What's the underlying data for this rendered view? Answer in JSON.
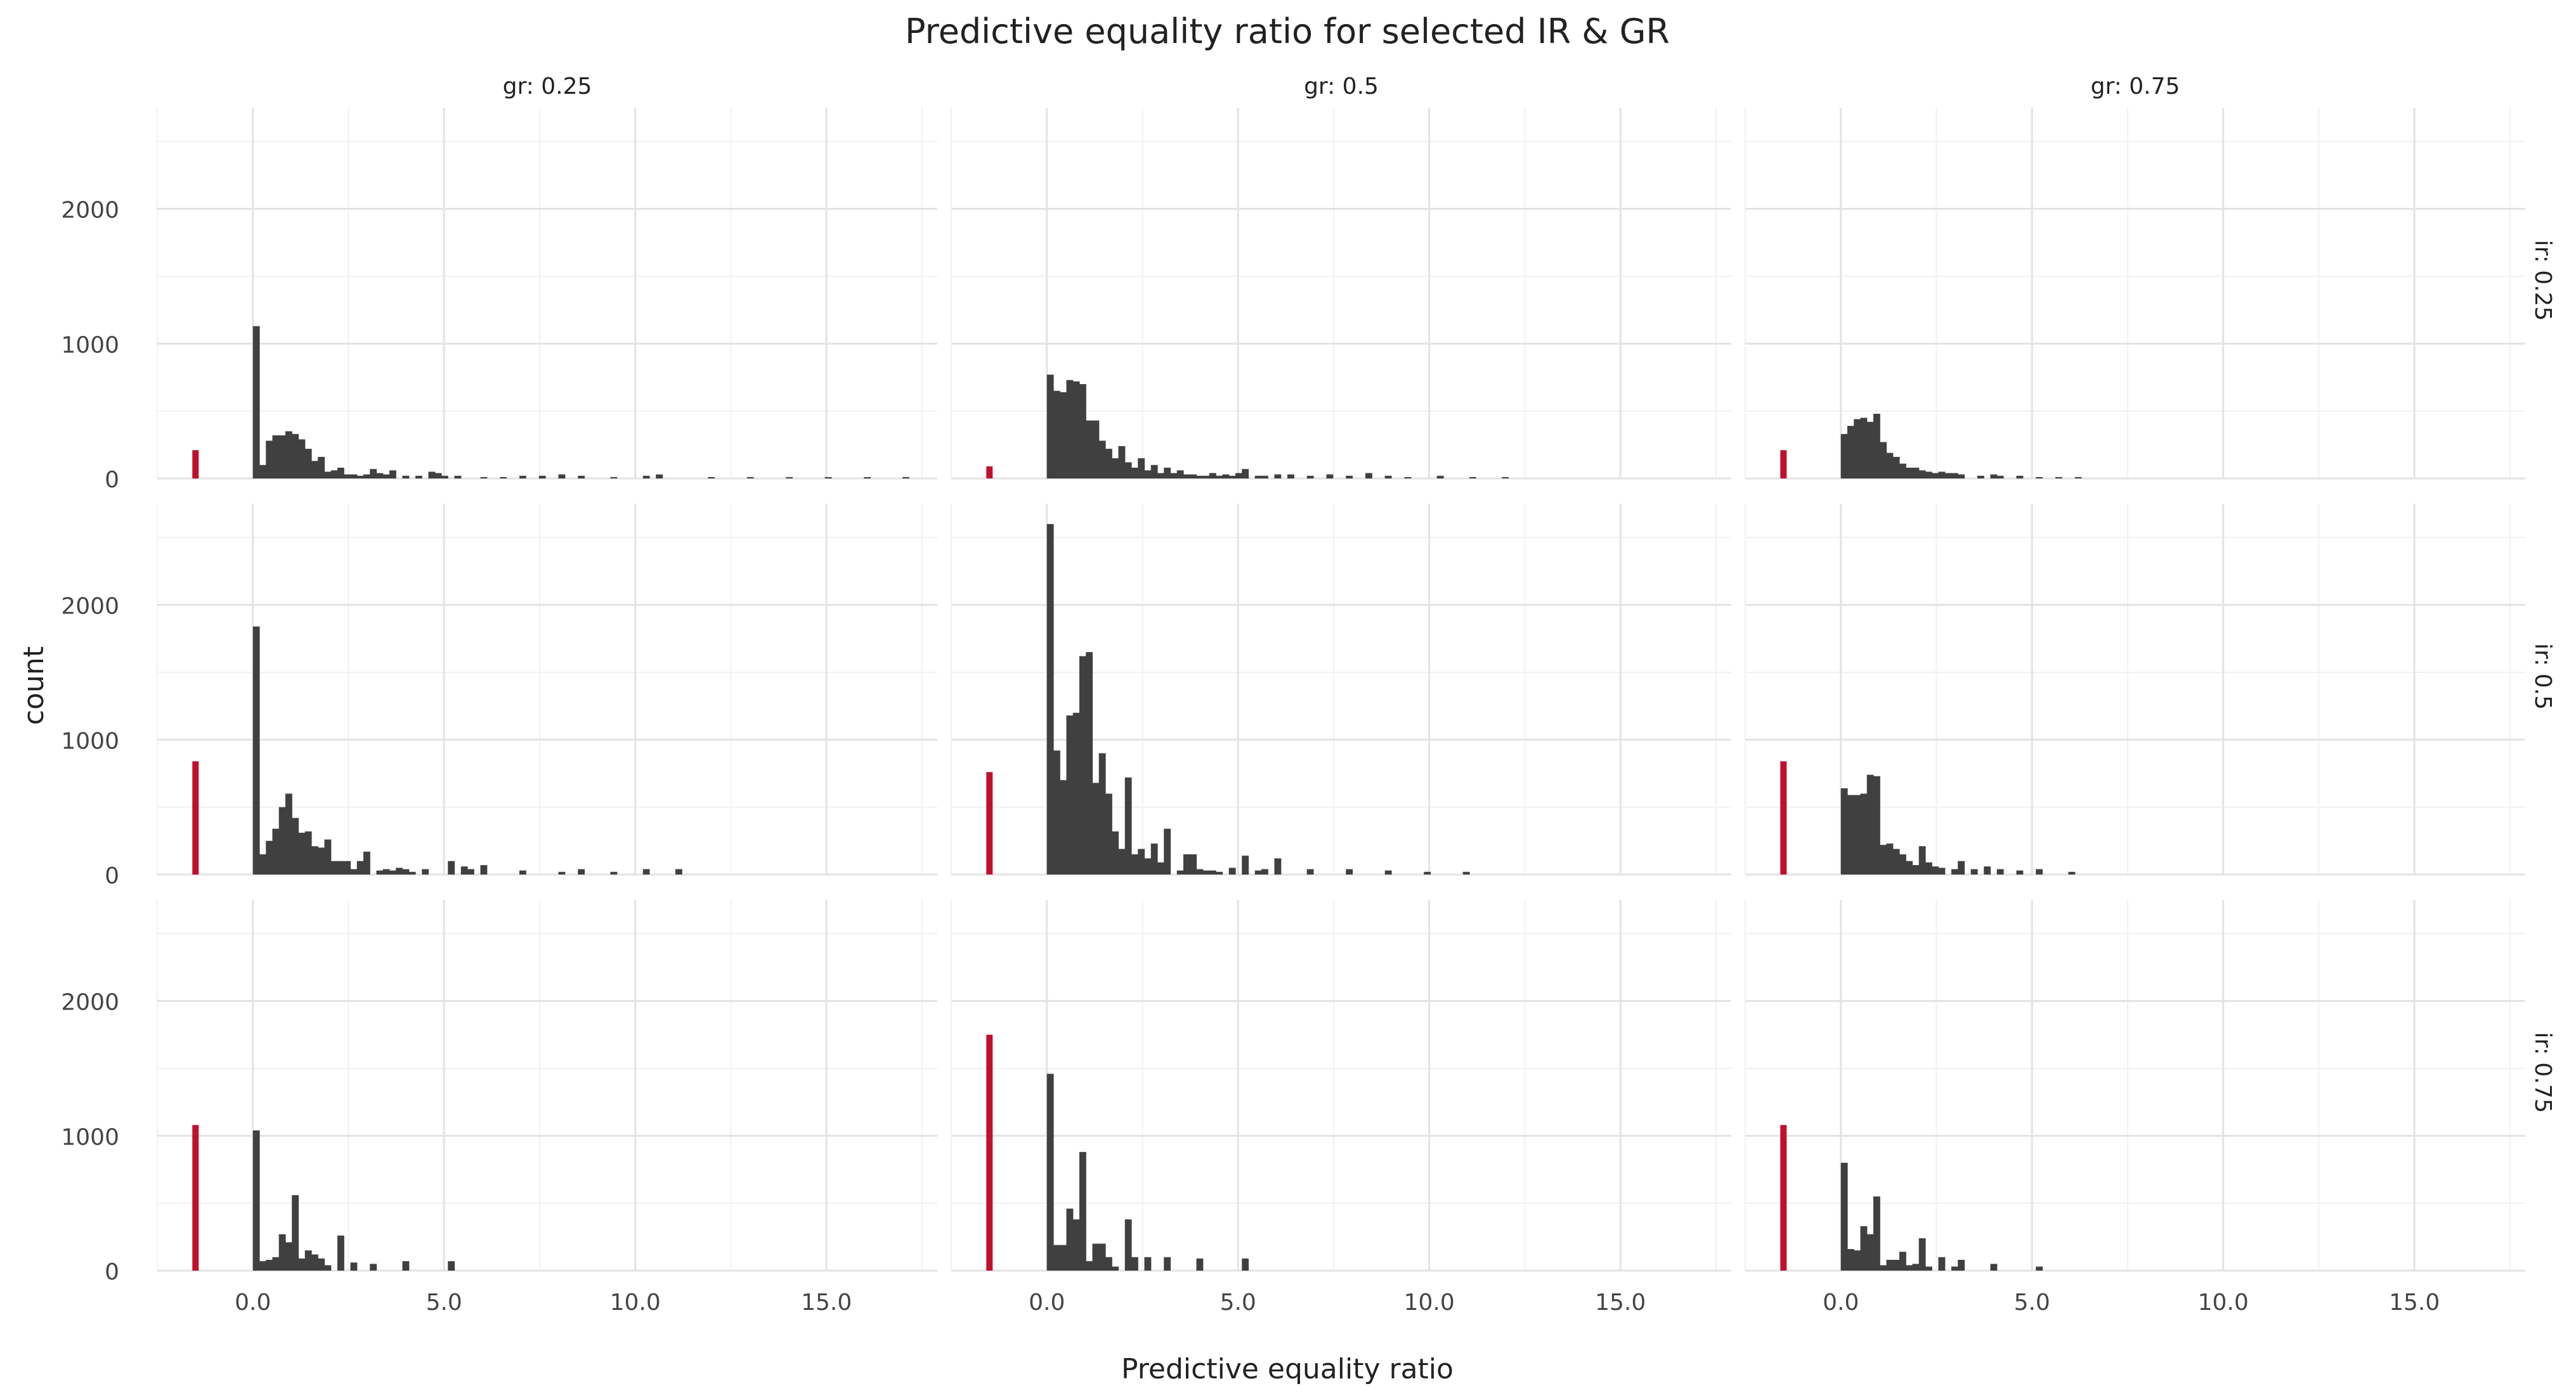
{
  "chart_data": {
    "type": "bar",
    "title": "Predictive equality ratio for selected IR & GR",
    "xlabel": "Predictive equality ratio",
    "ylabel": "count",
    "xlim": [
      -2.5,
      17.9
    ],
    "ylim": [
      0,
      2750
    ],
    "x_ticks": [
      0,
      5,
      10,
      15
    ],
    "x_tick_labels": [
      "0.0",
      "5.0",
      "10.0",
      "15.0"
    ],
    "y_ticks": [
      0,
      1000,
      2000
    ],
    "y_tick_labels": [
      "0",
      "1000",
      "2000"
    ],
    "grid": true,
    "legend": "none",
    "colors": {
      "bars": "#404040",
      "na_bar": "#c0102c",
      "grid": "#e3e3e3",
      "text": "#222222"
    },
    "na_position": -1.5,
    "bin_width": 0.17,
    "columns": [
      "gr: 0.25",
      "gr: 0.5",
      "gr: 0.75"
    ],
    "rows": [
      "ir: 0.25",
      "ir: 0.5",
      "ir: 0.75"
    ],
    "panels": [
      {
        "row": 0,
        "col": 0,
        "na_count": 210,
        "x": [
          0,
          0.17,
          0.34,
          0.51,
          0.68,
          0.85,
          1.02,
          1.19,
          1.36,
          1.53,
          1.7,
          1.87,
          2.04,
          2.21,
          2.38,
          2.55,
          2.72,
          2.89,
          3.06,
          3.23,
          3.4,
          3.57,
          3.91,
          4.25,
          4.59,
          4.76,
          4.93,
          5.27,
          5.95,
          6.46,
          6.97,
          7.48,
          7.99,
          8.5,
          9.35,
          10.2,
          10.54,
          11.9,
          12.92,
          13.94,
          14.96,
          15.98,
          16.99
        ],
        "y": [
          1130,
          100,
          280,
          320,
          320,
          350,
          330,
          290,
          220,
          130,
          160,
          50,
          60,
          80,
          30,
          30,
          20,
          30,
          70,
          40,
          30,
          60,
          20,
          20,
          50,
          40,
          20,
          20,
          10,
          10,
          20,
          20,
          30,
          20,
          10,
          20,
          30,
          10,
          10,
          10,
          10,
          10,
          10
        ]
      },
      {
        "row": 0,
        "col": 1,
        "na_count": 90,
        "x": [
          0,
          0.17,
          0.34,
          0.51,
          0.68,
          0.85,
          1.02,
          1.19,
          1.36,
          1.53,
          1.7,
          1.87,
          2.04,
          2.21,
          2.38,
          2.55,
          2.72,
          2.89,
          3.06,
          3.23,
          3.4,
          3.57,
          3.74,
          3.91,
          4.08,
          4.25,
          4.42,
          4.59,
          4.76,
          4.93,
          5.1,
          5.44,
          5.61,
          5.95,
          6.29,
          6.8,
          7.31,
          7.82,
          8.33,
          8.84,
          9.35,
          10.2,
          11.05,
          11.9
        ],
        "y": [
          770,
          650,
          640,
          730,
          720,
          700,
          430,
          430,
          280,
          220,
          150,
          240,
          120,
          80,
          150,
          60,
          100,
          40,
          80,
          40,
          60,
          30,
          30,
          20,
          20,
          40,
          20,
          30,
          20,
          40,
          70,
          20,
          20,
          30,
          30,
          20,
          30,
          20,
          40,
          20,
          10,
          20,
          10,
          10
        ]
      },
      {
        "row": 0,
        "col": 2,
        "na_count": 210,
        "x": [
          0,
          0.17,
          0.34,
          0.51,
          0.68,
          0.85,
          1.02,
          1.19,
          1.36,
          1.53,
          1.7,
          1.87,
          2.04,
          2.21,
          2.38,
          2.55,
          2.72,
          2.89,
          3.06,
          3.57,
          3.91,
          4.08,
          4.59,
          5.1,
          5.61,
          6.12
        ],
        "y": [
          330,
          390,
          440,
          450,
          420,
          480,
          270,
          190,
          160,
          110,
          80,
          80,
          60,
          50,
          40,
          50,
          40,
          40,
          30,
          20,
          30,
          20,
          20,
          10,
          10,
          10
        ]
      },
      {
        "row": 1,
        "col": 0,
        "na_count": 840,
        "x": [
          0,
          0.17,
          0.34,
          0.51,
          0.68,
          0.85,
          1.02,
          1.19,
          1.36,
          1.53,
          1.7,
          1.87,
          2.04,
          2.21,
          2.38,
          2.55,
          2.72,
          2.89,
          3.23,
          3.4,
          3.57,
          3.74,
          3.91,
          4.08,
          4.42,
          5.1,
          5.44,
          5.61,
          5.95,
          6.97,
          7.99,
          8.5,
          9.35,
          10.2,
          11.05
        ],
        "y": [
          1840,
          150,
          250,
          340,
          500,
          600,
          420,
          310,
          320,
          210,
          200,
          260,
          100,
          100,
          100,
          40,
          100,
          170,
          30,
          40,
          30,
          50,
          40,
          20,
          40,
          100,
          60,
          40,
          70,
          30,
          20,
          40,
          20,
          40,
          40
        ]
      },
      {
        "row": 1,
        "col": 1,
        "na_count": 760,
        "x": [
          0,
          0.17,
          0.34,
          0.51,
          0.68,
          0.85,
          1.02,
          1.19,
          1.36,
          1.53,
          1.7,
          1.87,
          2.04,
          2.21,
          2.38,
          2.55,
          2.72,
          2.89,
          3.06,
          3.4,
          3.57,
          3.74,
          3.91,
          4.08,
          4.25,
          4.42,
          4.76,
          5.1,
          5.44,
          5.61,
          5.95,
          6.8,
          7.82,
          8.84,
          9.86,
          10.88
        ],
        "y": [
          2600,
          920,
          700,
          1180,
          1200,
          1620,
          1650,
          680,
          900,
          600,
          320,
          190,
          720,
          150,
          190,
          120,
          230,
          90,
          340,
          30,
          150,
          150,
          40,
          30,
          30,
          20,
          50,
          140,
          30,
          40,
          120,
          40,
          40,
          30,
          20,
          20
        ]
      },
      {
        "row": 1,
        "col": 2,
        "na_count": 840,
        "x": [
          0,
          0.17,
          0.34,
          0.51,
          0.68,
          0.85,
          1.02,
          1.19,
          1.36,
          1.53,
          1.7,
          1.87,
          2.04,
          2.21,
          2.38,
          2.55,
          2.89,
          3.06,
          3.4,
          3.74,
          4.08,
          4.59,
          5.1,
          5.95
        ],
        "y": [
          640,
          590,
          590,
          600,
          740,
          730,
          220,
          230,
          190,
          150,
          100,
          70,
          210,
          90,
          60,
          50,
          40,
          100,
          40,
          60,
          40,
          30,
          40,
          20
        ]
      },
      {
        "row": 2,
        "col": 0,
        "na_count": 1080,
        "x": [
          0,
          0.17,
          0.34,
          0.51,
          0.68,
          0.85,
          1.02,
          1.19,
          1.36,
          1.53,
          1.7,
          1.87,
          2.21,
          2.55,
          3.06,
          3.91,
          5.1
        ],
        "y": [
          1040,
          70,
          80,
          100,
          270,
          210,
          560,
          90,
          150,
          120,
          90,
          40,
          260,
          60,
          50,
          70,
          70
        ]
      },
      {
        "row": 2,
        "col": 1,
        "na_count": 1750,
        "x": [
          0,
          0.17,
          0.34,
          0.51,
          0.68,
          0.85,
          1.02,
          1.19,
          1.36,
          1.53,
          1.7,
          2.04,
          2.21,
          2.55,
          3.06,
          3.91,
          5.1
        ],
        "y": [
          1460,
          190,
          190,
          460,
          380,
          880,
          70,
          200,
          200,
          100,
          30,
          380,
          100,
          100,
          100,
          90,
          90
        ]
      },
      {
        "row": 2,
        "col": 2,
        "na_count": 1080,
        "x": [
          0,
          0.17,
          0.34,
          0.51,
          0.68,
          0.85,
          1.02,
          1.19,
          1.36,
          1.53,
          1.7,
          1.87,
          2.04,
          2.21,
          2.55,
          2.89,
          3.06,
          3.91,
          5.1
        ],
        "y": [
          800,
          160,
          150,
          330,
          270,
          550,
          40,
          80,
          80,
          140,
          40,
          50,
          240,
          30,
          100,
          30,
          80,
          50,
          30
        ]
      }
    ]
  }
}
